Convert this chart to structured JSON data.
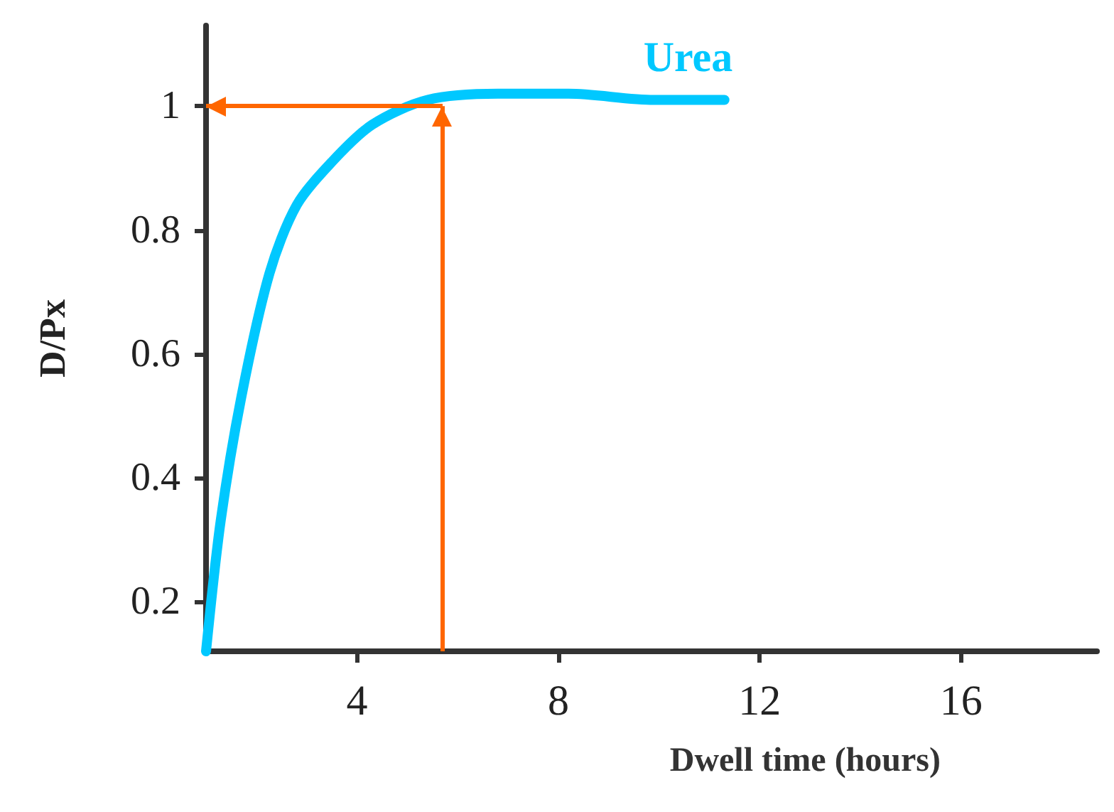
{
  "chart_data": {
    "type": "line",
    "xlabel": "Dwell time (hours)",
    "ylabel": "D/Px",
    "xlim": [
      1,
      18.7
    ],
    "xticks": [
      4,
      8,
      12,
      16
    ],
    "ylim": [
      0.12,
      1.13
    ],
    "yticks": [
      0.2,
      0.4,
      0.6,
      0.8,
      1
    ],
    "series": [
      {
        "name": "Urea",
        "color": "#00c8ff",
        "x": [
          1,
          1.29,
          1.7,
          2.26,
          2.8,
          3.5,
          4.3,
          5.4,
          6.8,
          8.2,
          9.9,
          11.3
        ],
        "values": [
          0.12,
          0.33,
          0.53,
          0.73,
          0.84,
          0.91,
          0.97,
          1.01,
          1.02,
          1.02,
          1.01,
          1.01
        ]
      }
    ],
    "ref_lines": [
      {
        "axis": "x",
        "value": 5.7,
        "color": "#ff6600"
      },
      {
        "axis": "y",
        "value": 1,
        "color": "#ff6600"
      }
    ],
    "grid": false,
    "legend": false,
    "line_style": "solid"
  }
}
